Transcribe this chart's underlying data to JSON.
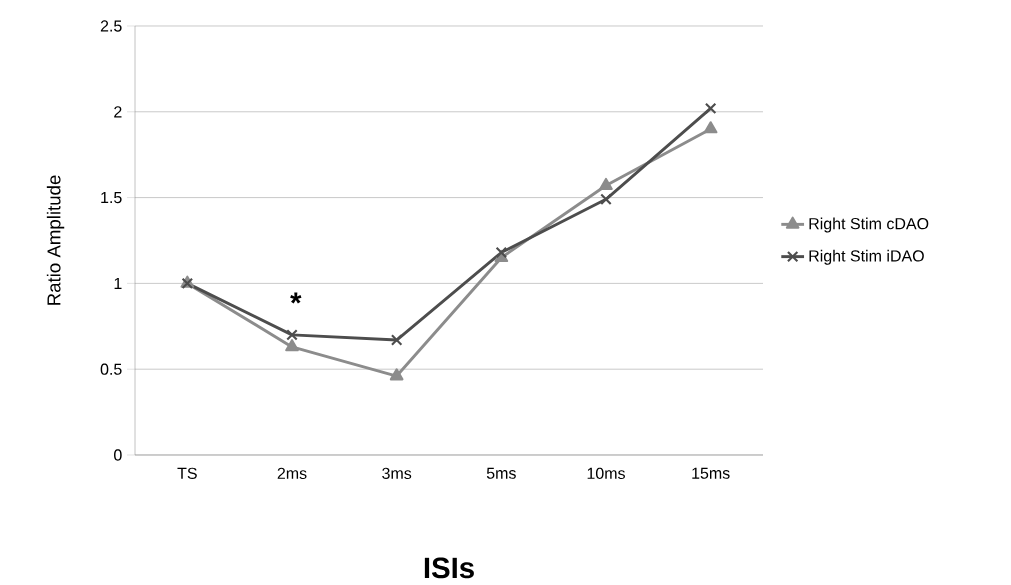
{
  "chart_data": {
    "type": "line",
    "xlabel": "ISIs",
    "ylabel": "Ratio Amplitude",
    "categories": [
      "TS",
      "2ms",
      "3ms",
      "5ms",
      "10ms",
      "15ms"
    ],
    "series": [
      {
        "name": "Right Stim cDAO",
        "color": "#8c8c8c",
        "marker": "triangle",
        "values": [
          1.0,
          0.63,
          0.46,
          1.15,
          1.57,
          1.9
        ]
      },
      {
        "name": "Right Stim iDAO",
        "color": "#4d4d4d",
        "marker": "cross",
        "values": [
          1.0,
          0.7,
          0.67,
          1.18,
          1.49,
          2.02
        ]
      }
    ],
    "ylim": [
      0,
      2.5
    ],
    "yticks": [
      0,
      0.5,
      1,
      1.5,
      2,
      2.5
    ],
    "grid": "y",
    "legend": "right",
    "annotations": [
      "*"
    ]
  }
}
